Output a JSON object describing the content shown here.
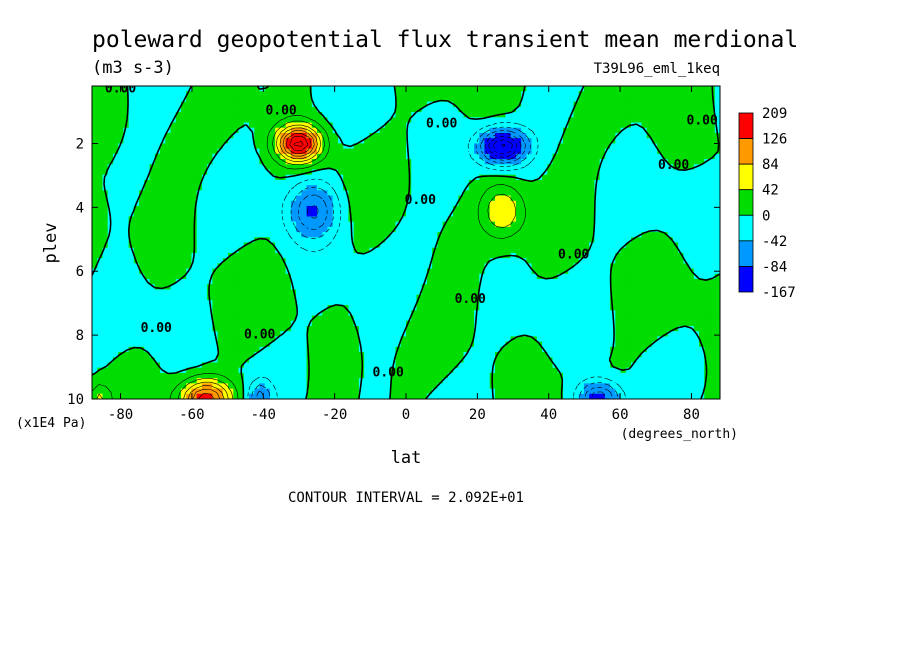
{
  "chart_data": {
    "type": "heatmap",
    "title": "poleward geopotential flux transient mean merdional",
    "units": "(m3 s-3)",
    "dataset": "T39L96_eml_1keq",
    "xlabel": "lat",
    "x_units": "(degrees_north)",
    "ylabel": "plev",
    "y_units": "(x1E4 Pa)",
    "xlim": [
      -88,
      88
    ],
    "ylim": [
      10,
      0.2
    ],
    "x_ticks": [
      -80,
      -60,
      -40,
      -20,
      0,
      20,
      40,
      60,
      80
    ],
    "x_tick_labels": [
      "-80",
      "-60",
      "-40",
      "-20",
      "0",
      "20",
      "40",
      "60",
      "80"
    ],
    "y_ticks": [
      2,
      4,
      6,
      8,
      10
    ],
    "y_tick_labels": [
      "2",
      "4",
      "6",
      "8",
      "10"
    ],
    "contour_interval": "CONTOUR INTERVAL = 2.092E+01",
    "contour_labels": [
      {
        "text": "0.00",
        "lat": -80,
        "plev": 0.4
      },
      {
        "text": "0.00",
        "lat": -35,
        "plev": 1.1
      },
      {
        "text": "0.00",
        "lat": 10,
        "plev": 1.5
      },
      {
        "text": "0.00",
        "lat": 83,
        "plev": 1.4
      },
      {
        "text": "0.00",
        "lat": 75,
        "plev": 2.8
      },
      {
        "text": "0.00",
        "lat": 4,
        "plev": 3.9
      },
      {
        "text": "0.00",
        "lat": 47,
        "plev": 5.6
      },
      {
        "text": "0.00",
        "lat": 18,
        "plev": 7.0
      },
      {
        "text": "0.00",
        "lat": -70,
        "plev": 7.9
      },
      {
        "text": "0.00",
        "lat": -41,
        "plev": 8.1
      },
      {
        "text": "0.00",
        "lat": -5,
        "plev": 9.3
      }
    ],
    "legend": {
      "placement": "right",
      "levels": [
        "209",
        "126",
        "84",
        "42",
        "0",
        "-42",
        "-84",
        "-167"
      ],
      "colors": [
        "#ff0000",
        "#ff9900",
        "#ffff00",
        "#00dd00",
        "#00ffff",
        "#0099ff",
        "#0000ff"
      ]
    },
    "features": [
      {
        "lat": -30,
        "plev": 2.0,
        "amp": 170,
        "wlat": 6,
        "wp": 0.55
      },
      {
        "lat": -26,
        "plev": 4.1,
        "amp": -85,
        "wlat": 7,
        "wp": 0.9
      },
      {
        "lat": 27,
        "plev": 2.1,
        "amp": -150,
        "wlat": 6.5,
        "wp": 0.55
      },
      {
        "lat": 27,
        "plev": 4.1,
        "amp": 65,
        "wlat": 6,
        "wp": 0.85
      },
      {
        "lat": -56,
        "plev": 10.0,
        "amp": 140,
        "wlat": 7,
        "wp": 0.6
      },
      {
        "lat": 54,
        "plev": 10.0,
        "amp": -110,
        "wlat": 6,
        "wp": 0.55
      },
      {
        "lat": -41,
        "plev": 10.0,
        "amp": -65,
        "wlat": 3,
        "wp": 0.5
      },
      {
        "lat": -86,
        "plev": 10.0,
        "amp": 45,
        "wlat": 3,
        "wp": 0.5
      }
    ]
  }
}
